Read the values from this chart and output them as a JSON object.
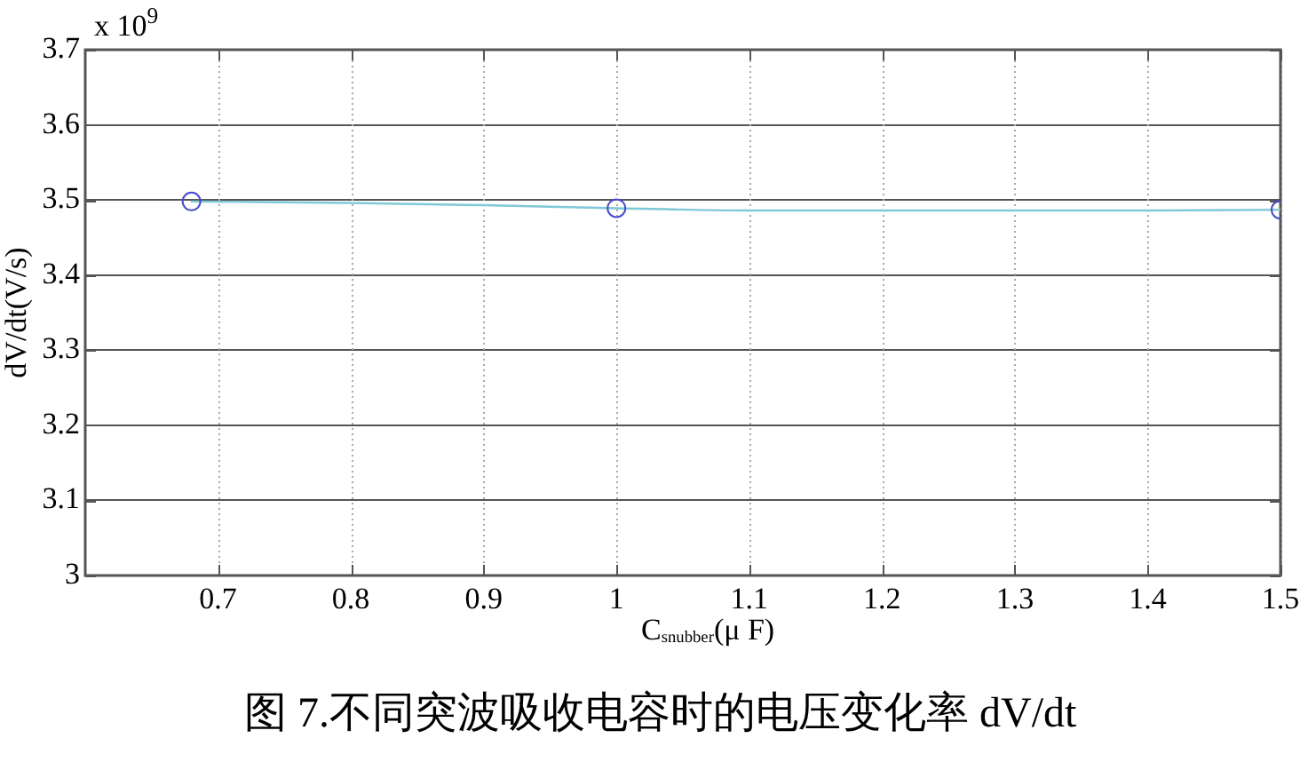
{
  "chart_data": {
    "type": "line",
    "xlabel": "C$_{snubber}$(μ F)",
    "ylabel": "dV/dt(V/s)",
    "annotations": [
      "x 10$^{9}$",
      "图 7.不同突波吸收电容时的电压变化率 dV/dt"
    ],
    "xlim": [
      0.6,
      1.5
    ],
    "xticks": [
      0.7,
      0.8,
      0.9,
      1,
      1.1,
      1.2,
      1.3,
      1.4,
      1.5
    ],
    "ylim": [
      3,
      3.7
    ],
    "yticks": [
      3,
      3.1,
      3.2,
      3.3,
      3.4,
      3.5,
      3.6,
      3.7
    ],
    "grid": true,
    "series": [
      {
        "color": "#80c8d8",
        "marker": "none",
        "x": [
          0.68,
          0.8,
          0.9,
          1,
          1.1,
          1.2,
          1.3,
          1.4,
          1.5
        ],
        "values": [
          3.498,
          3.496,
          3.493,
          3.489,
          3.486,
          3.486,
          3.486,
          3.486,
          3.487
        ]
      },
      {
        "type": "scatter",
        "color": "#4a4ad0",
        "marker": "circle",
        "x": [
          0.68,
          1,
          1.5
        ],
        "values": [
          3.498,
          3.489,
          3.487
        ]
      }
    ]
  }
}
